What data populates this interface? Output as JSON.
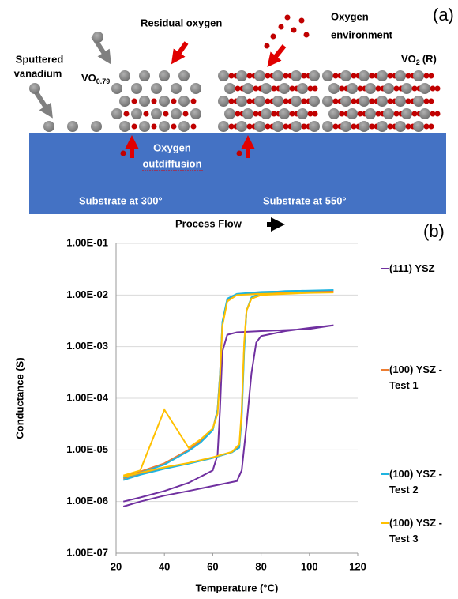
{
  "panel_a": {
    "label": "(a)",
    "sputtered": [
      "Sputtered",
      "vanadium"
    ],
    "vo079": {
      "base": "VO",
      "sub": "0.79"
    },
    "residual": "Residual oxygen",
    "environment": [
      "Oxygen",
      "environment"
    ],
    "vo2": {
      "base": "VO",
      "sub": "2",
      "suffix": "(R)"
    },
    "outdiffusion": [
      "Oxygen",
      "outdiffusion"
    ],
    "substrate_300": "Substrate at 300°",
    "substrate_550": "Substrate at 550°",
    "process_flow": "Process Flow"
  },
  "chart_data": {
    "type": "line",
    "panel_label": "(b)",
    "x_label": "Temperature (°C)",
    "y_label": "Conductance (S)",
    "log_y": true,
    "grid": true,
    "xlim": [
      20,
      120
    ],
    "xticks": [
      20,
      40,
      60,
      80,
      100,
      120
    ],
    "ylim": [
      1e-07,
      0.1
    ],
    "yticks": [
      {
        "value": 1e-07,
        "label": "1.00E-07"
      },
      {
        "value": 1e-06,
        "label": "1.00E-06"
      },
      {
        "value": 1e-05,
        "label": "1.00E-05"
      },
      {
        "value": 0.0001,
        "label": "1.00E-04"
      },
      {
        "value": 0.001,
        "label": "1.00E-03"
      },
      {
        "value": 0.01,
        "label": "1.00E-02"
      },
      {
        "value": 0.1,
        "label": "1.00E-01"
      }
    ],
    "series": [
      {
        "name": "(111) YSZ",
        "color": "#7030a0",
        "x": [
          23,
          30,
          40,
          50,
          60,
          70,
          72,
          74,
          76,
          78,
          80,
          90,
          100,
          110,
          100,
          80,
          70,
          66,
          64,
          63,
          62,
          60,
          50,
          40,
          30,
          23
        ],
        "values": [
          8e-07,
          1e-06,
          1.3e-06,
          1.6e-06,
          2e-06,
          2.5e-06,
          4e-06,
          3e-05,
          0.0003,
          0.0012,
          0.0016,
          0.002,
          0.0023,
          0.0026,
          0.0022,
          0.002,
          0.0019,
          0.0017,
          0.0008,
          6e-05,
          8e-06,
          4e-06,
          2.3e-06,
          1.6e-06,
          1.2e-06,
          1e-06
        ]
      },
      {
        "name": "(100) YSZ - Test 1",
        "color": "#ed7d31",
        "x": [
          23,
          30,
          40,
          50,
          60,
          68,
          71,
          72,
          73,
          74,
          76,
          80,
          90,
          100,
          110,
          100,
          80,
          70,
          66,
          64,
          63,
          62,
          60,
          55,
          50,
          40,
          30,
          23
        ],
        "values": [
          2.8e-06,
          3.5e-06,
          4.5e-06,
          5.5e-06,
          7e-06,
          9e-06,
          1.2e-05,
          5e-05,
          0.001,
          0.005,
          0.0085,
          0.01,
          0.011,
          0.0115,
          0.012,
          0.0115,
          0.011,
          0.01,
          0.008,
          0.003,
          0.0003,
          6e-05,
          2.5e-05,
          1.5e-05,
          1e-05,
          5.5e-06,
          3.8e-06,
          3e-06
        ]
      },
      {
        "name": "(100) YSZ - Test 2",
        "color": "#1fb4e0",
        "x": [
          23,
          30,
          40,
          50,
          60,
          68,
          71,
          72,
          73,
          74,
          76,
          80,
          90,
          100,
          110,
          100,
          80,
          70,
          66,
          64,
          63,
          62,
          60,
          55,
          50,
          40,
          30,
          23
        ],
        "values": [
          2.6e-06,
          3.3e-06,
          4.3e-06,
          5.4e-06,
          7e-06,
          9e-06,
          1.1e-05,
          4e-05,
          0.0008,
          0.005,
          0.009,
          0.011,
          0.012,
          0.0122,
          0.0125,
          0.0122,
          0.0115,
          0.0105,
          0.0085,
          0.003,
          0.0003,
          6e-05,
          2.4e-05,
          1.4e-05,
          9.5e-06,
          5.2e-06,
          3.6e-06,
          2.9e-06
        ]
      },
      {
        "name": "(100) YSZ - Test 3",
        "color": "#ffc000",
        "x": [
          23,
          30,
          40,
          50,
          60,
          68,
          71,
          72,
          73,
          74,
          76,
          80,
          90,
          100,
          110,
          100,
          80,
          70,
          66,
          64,
          63,
          62,
          60,
          55,
          50,
          40,
          30,
          23
        ],
        "values": [
          3e-06,
          3.6e-06,
          4.6e-06,
          5.6e-06,
          7.2e-06,
          9.2e-06,
          1.3e-05,
          6e-05,
          0.0012,
          0.005,
          0.0085,
          0.01,
          0.0105,
          0.011,
          0.0112,
          0.011,
          0.0105,
          0.01,
          0.0075,
          0.0025,
          0.00025,
          5e-05,
          2.6e-05,
          1.6e-05,
          1.1e-05,
          6e-05,
          4e-06,
          3.2e-06
        ]
      }
    ]
  }
}
